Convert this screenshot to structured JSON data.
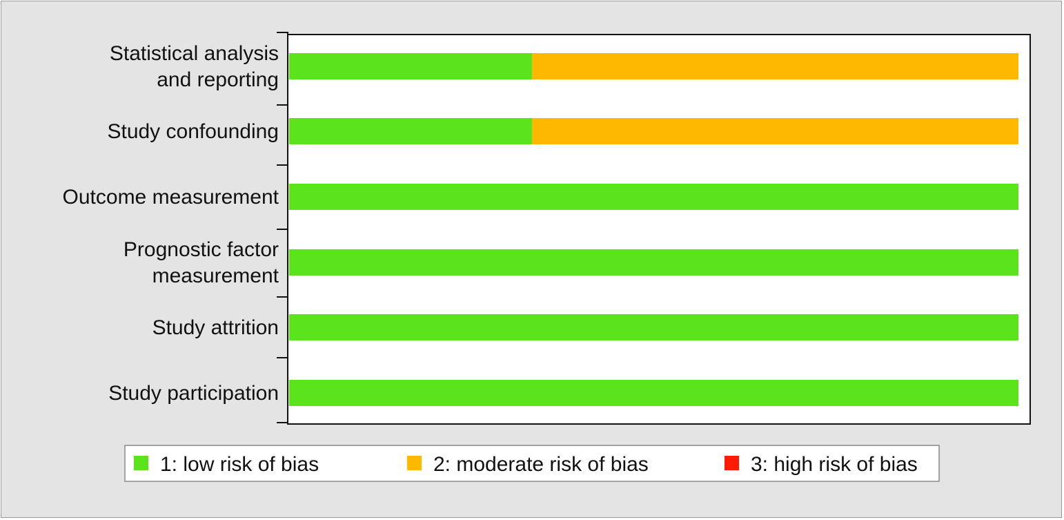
{
  "chart_data": {
    "type": "bar",
    "orientation": "horizontal",
    "stacked": true,
    "categories": [
      [
        "Statistical analysis",
        "and reporting"
      ],
      [
        "Study confounding"
      ],
      [
        "Outcome measurement"
      ],
      [
        "Prognostic factor",
        "measurement"
      ],
      [
        "Study attrition"
      ],
      [
        "Study participation"
      ]
    ],
    "series": [
      {
        "name": "1: low risk of bias",
        "color": "#5be31c",
        "values": [
          33.3,
          33.3,
          100,
          100,
          100,
          100
        ]
      },
      {
        "name": "2: moderate risk of bias",
        "color": "#ffb800",
        "values": [
          66.7,
          66.7,
          0,
          0,
          0,
          0
        ]
      },
      {
        "name": "3: high risk of bias",
        "color": "#ff1a00",
        "values": [
          0,
          0,
          0,
          0,
          0,
          0
        ]
      }
    ],
    "xlim": [
      0,
      100
    ],
    "grid": false,
    "legend": "bottom"
  }
}
